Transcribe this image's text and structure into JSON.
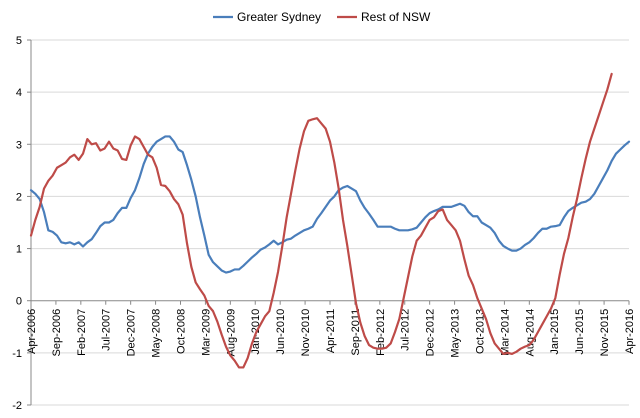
{
  "chart_data": {
    "type": "line",
    "title": "",
    "xlabel": "",
    "ylabel": "",
    "ylim": [
      -2,
      5
    ],
    "yticks": [
      -2,
      -1,
      0,
      1,
      2,
      3,
      4,
      5
    ],
    "grid": "horizontal",
    "legend_placement": "top-center",
    "x_start": "Apr-2006",
    "x_end": "Apr-2016",
    "x_tick_labels": [
      "Apr-2006",
      "Sep-2006",
      "Feb-2007",
      "Jul-2007",
      "Dec-2007",
      "May-2008",
      "Oct-2008",
      "Mar-2009",
      "Aug-2009",
      "Jan-2010",
      "Jun-2010",
      "Nov-2010",
      "Apr-2011",
      "Sep-2011",
      "Feb-2012",
      "Jul-2012",
      "Dec-2012",
      "May-2013",
      "Oct-2013",
      "Mar-2014",
      "Aug-2014",
      "Jan-2015",
      "Jun-2015",
      "Nov-2015",
      "Apr-2016"
    ],
    "series": [
      {
        "name": "Greater Sydney",
        "color": "#4a7ebb",
        "values": [
          2.12,
          2.05,
          1.95,
          1.7,
          1.35,
          1.32,
          1.25,
          1.12,
          1.1,
          1.12,
          1.08,
          1.12,
          1.04,
          1.12,
          1.18,
          1.3,
          1.43,
          1.5,
          1.5,
          1.55,
          1.68,
          1.78,
          1.78,
          1.97,
          2.12,
          2.35,
          2.62,
          2.82,
          2.95,
          3.05,
          3.1,
          3.15,
          3.15,
          3.05,
          2.9,
          2.85,
          2.6,
          2.32,
          2.0,
          1.6,
          1.25,
          0.88,
          0.74,
          0.66,
          0.58,
          0.54,
          0.56,
          0.6,
          0.6,
          0.67,
          0.75,
          0.83,
          0.9,
          0.98,
          1.02,
          1.08,
          1.15,
          1.08,
          1.12,
          1.17,
          1.19,
          1.25,
          1.3,
          1.35,
          1.38,
          1.42,
          1.57,
          1.68,
          1.8,
          1.92,
          2.0,
          2.12,
          2.17,
          2.2,
          2.15,
          2.1,
          1.92,
          1.78,
          1.67,
          1.55,
          1.42,
          1.42,
          1.42,
          1.42,
          1.38,
          1.35,
          1.35,
          1.35,
          1.37,
          1.4,
          1.5,
          1.6,
          1.68,
          1.72,
          1.75,
          1.8,
          1.8,
          1.8,
          1.83,
          1.86,
          1.82,
          1.7,
          1.62,
          1.62,
          1.5,
          1.45,
          1.4,
          1.3,
          1.15,
          1.05,
          1.0,
          0.96,
          0.96,
          1.0,
          1.07,
          1.12,
          1.2,
          1.3,
          1.38,
          1.38,
          1.42,
          1.43,
          1.45,
          1.6,
          1.72,
          1.78,
          1.83,
          1.88,
          1.9,
          1.95,
          2.05,
          2.2,
          2.35,
          2.5,
          2.68,
          2.82,
          2.9,
          2.98,
          3.05
        ]
      },
      {
        "name": "Rest of NSW",
        "color": "#be4b48",
        "values": [
          1.25,
          1.55,
          1.8,
          2.15,
          2.3,
          2.4,
          2.55,
          2.6,
          2.65,
          2.75,
          2.8,
          2.7,
          2.82,
          3.1,
          3.0,
          3.02,
          2.88,
          2.92,
          3.05,
          2.92,
          2.88,
          2.72,
          2.7,
          2.98,
          3.15,
          3.1,
          2.95,
          2.8,
          2.75,
          2.55,
          2.22,
          2.2,
          2.1,
          1.95,
          1.85,
          1.65,
          1.1,
          0.65,
          0.35,
          0.22,
          0.1,
          -0.1,
          -0.2,
          -0.4,
          -0.65,
          -0.88,
          -1.05,
          -1.15,
          -1.28,
          -1.28,
          -1.1,
          -0.82,
          -0.6,
          -0.45,
          -0.3,
          -0.2,
          0.15,
          0.55,
          1.05,
          1.6,
          2.05,
          2.5,
          2.92,
          3.25,
          3.45,
          3.48,
          3.5,
          3.4,
          3.3,
          3.05,
          2.65,
          2.15,
          1.55,
          1.05,
          0.5,
          -0.05,
          -0.42,
          -0.68,
          -0.85,
          -0.9,
          -0.92,
          -0.92,
          -0.9,
          -0.82,
          -0.6,
          -0.35,
          0.05,
          0.45,
          0.85,
          1.15,
          1.25,
          1.4,
          1.55,
          1.6,
          1.72,
          1.75,
          1.55,
          1.45,
          1.35,
          1.15,
          0.8,
          0.48,
          0.3,
          0.05,
          -0.15,
          -0.35,
          -0.62,
          -0.82,
          -0.92,
          -1.02,
          -1.0,
          -1.02,
          -0.98,
          -0.92,
          -0.88,
          -0.85,
          -0.75,
          -0.6,
          -0.45,
          -0.3,
          -0.15,
          0.05,
          0.5,
          0.9,
          1.2,
          1.6,
          1.95,
          2.35,
          2.72,
          3.05,
          3.3,
          3.55,
          3.8,
          4.05,
          4.35
        ]
      }
    ]
  }
}
